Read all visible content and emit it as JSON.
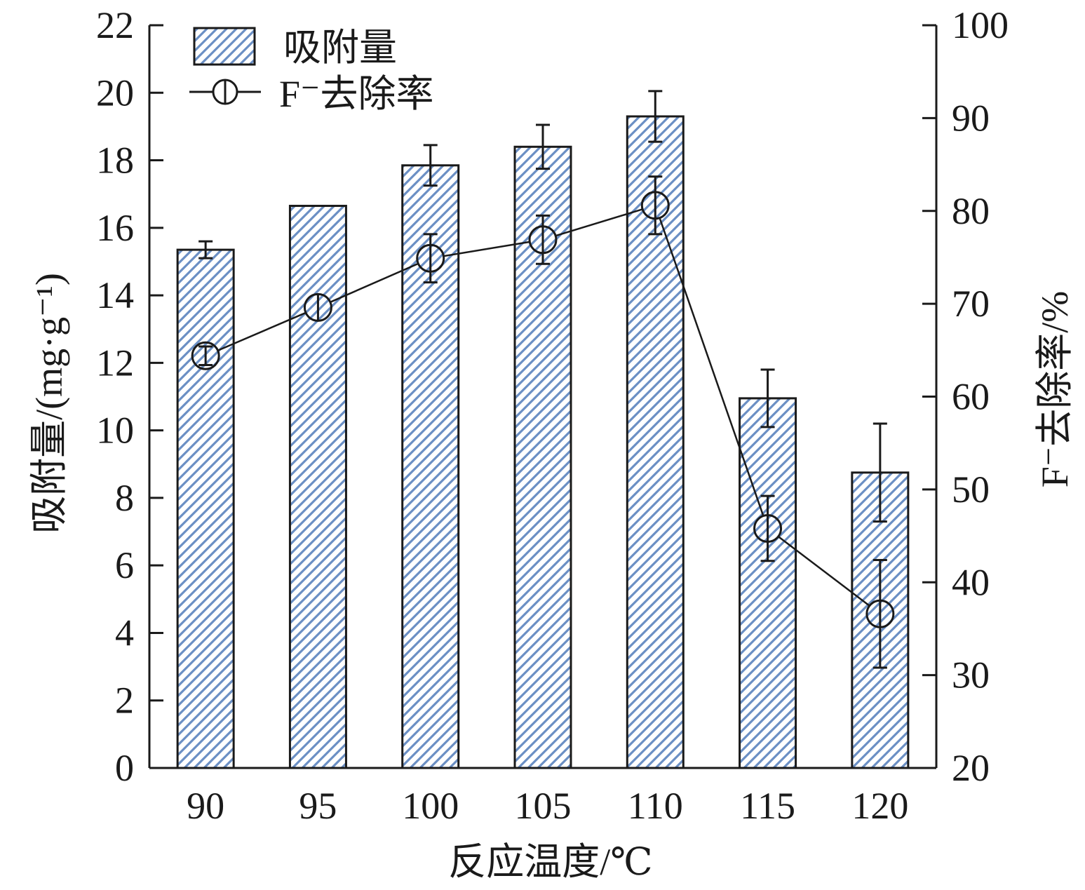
{
  "chart_data": {
    "type": "bar",
    "xlabel": "反应温度/℃",
    "ylabel": "吸附量/(mg·g⁻¹)",
    "y2label": "F⁻去除率/%",
    "categories": [
      "90",
      "95",
      "100",
      "105",
      "110",
      "115",
      "120"
    ],
    "ylim": [
      0,
      22
    ],
    "y2lim": [
      20,
      100
    ],
    "yticks": [
      "0",
      "2",
      "4",
      "6",
      "8",
      "10",
      "12",
      "14",
      "16",
      "18",
      "20",
      "22"
    ],
    "y2ticks": [
      "20",
      "30",
      "40",
      "50",
      "60",
      "70",
      "80",
      "90",
      "100"
    ],
    "grid": false,
    "legend_position": "top-left",
    "bar_color": "#6b8fc4",
    "series": [
      {
        "name": "吸附量",
        "type": "bar",
        "axis": "left",
        "values": [
          15.35,
          16.65,
          17.85,
          18.4,
          19.3,
          10.95,
          8.75
        ],
        "errors": [
          0.25,
          0,
          0.6,
          0.65,
          0.75,
          0.85,
          1.45
        ]
      },
      {
        "name": "F⁻去除率",
        "type": "line",
        "axis": "right",
        "values": [
          64.4,
          69.6,
          74.9,
          76.9,
          80.6,
          45.8,
          36.6
        ],
        "errors": [
          1.0,
          0,
          2.6,
          2.6,
          3.1,
          3.5,
          5.8
        ]
      }
    ]
  }
}
